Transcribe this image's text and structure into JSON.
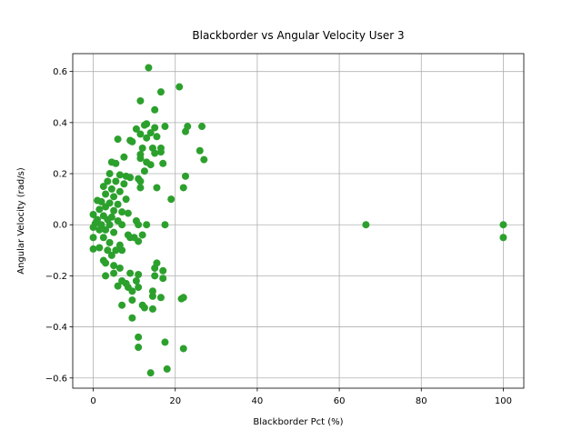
{
  "chart_data": {
    "type": "scatter",
    "title": "Blackborder vs Angular Velocity User 3",
    "xlabel": "Blackborder Pct (%)",
    "ylabel": "Angular Velocity (rad/s)",
    "color": "#2ca02c",
    "grid": true,
    "xlim": [
      -5,
      105
    ],
    "ylim": [
      -0.64,
      0.67
    ],
    "xticks": [
      0,
      20,
      40,
      60,
      80,
      100
    ],
    "yticks": [
      {
        "value": -0.6,
        "label": "−0.6"
      },
      {
        "value": -0.4,
        "label": "−0.4"
      },
      {
        "value": -0.2,
        "label": "−0.2"
      },
      {
        "value": 0,
        "label": "0.0"
      },
      {
        "value": 0.2,
        "label": "0.2"
      },
      {
        "value": 0.4,
        "label": "0.4"
      },
      {
        "value": 0.6,
        "label": "0.6"
      }
    ],
    "x": [
      13.5,
      21,
      16.5,
      11.5,
      15,
      13,
      12.5,
      17.5,
      15,
      10.5,
      23,
      26.5,
      22.5,
      14,
      11.5,
      13,
      6,
      9,
      15.5,
      9.5,
      12,
      14.5,
      16.5,
      16.5,
      26,
      11.5,
      15,
      11.5,
      7.5,
      27,
      4.5,
      5.5,
      13,
      17,
      14,
      12.5,
      4,
      6.5,
      8,
      9,
      22.5,
      11,
      3.5,
      5.5,
      11.5,
      7.5,
      11.5,
      15.5,
      22,
      2.5,
      4.5,
      6.5,
      3,
      5,
      8,
      19,
      1,
      2,
      4,
      6,
      3,
      1.5,
      5,
      7,
      8.5,
      0,
      2.5,
      4.5,
      1,
      3.5,
      6,
      10.5,
      0.5,
      2,
      4,
      7,
      11,
      13,
      17.5,
      66.5,
      100,
      100,
      0,
      1.5,
      3,
      5,
      8.5,
      0,
      2.5,
      9,
      10,
      12,
      11,
      4,
      6.5,
      0,
      1.5,
      3.5,
      5.5,
      7,
      4.5,
      2.5,
      3,
      5,
      6.5,
      15.5,
      15,
      3,
      5,
      9,
      11,
      15,
      17,
      17,
      7,
      8,
      10.5,
      6,
      8.5,
      11,
      9.5,
      14.5,
      14.5,
      16.5,
      22,
      21.5,
      9.5,
      7,
      12,
      12.5,
      14.5,
      9.5,
      11,
      17.5,
      11,
      22,
      18,
      14
    ],
    "y": [
      0.615,
      0.54,
      0.52,
      0.485,
      0.45,
      0.395,
      0.39,
      0.385,
      0.38,
      0.375,
      0.385,
      0.385,
      0.365,
      0.36,
      0.355,
      0.34,
      0.335,
      0.33,
      0.345,
      0.325,
      0.3,
      0.3,
      0.3,
      0.285,
      0.29,
      0.275,
      0.28,
      0.26,
      0.265,
      0.255,
      0.245,
      0.24,
      0.245,
      0.24,
      0.235,
      0.21,
      0.2,
      0.195,
      0.19,
      0.185,
      0.19,
      0.18,
      0.17,
      0.17,
      0.17,
      0.16,
      0.145,
      0.145,
      0.145,
      0.15,
      0.14,
      0.13,
      0.12,
      0.11,
      0.1,
      0.1,
      0.095,
      0.09,
      0.085,
      0.08,
      0.07,
      0.06,
      0.055,
      0.05,
      0.045,
      0.04,
      0.035,
      0.03,
      0.02,
      0.02,
      0.015,
      0.015,
      0.005,
      0,
      0,
      0,
      0,
      0,
      0,
      0,
      0,
      -0.05,
      -0.01,
      -0.02,
      -0.02,
      -0.03,
      -0.04,
      -0.05,
      -0.05,
      -0.05,
      -0.05,
      -0.04,
      -0.065,
      -0.07,
      -0.08,
      -0.095,
      -0.09,
      -0.1,
      -0.1,
      -0.1,
      -0.12,
      -0.14,
      -0.15,
      -0.16,
      -0.17,
      -0.15,
      -0.17,
      -0.2,
      -0.19,
      -0.19,
      -0.195,
      -0.2,
      -0.18,
      -0.21,
      -0.22,
      -0.23,
      -0.22,
      -0.24,
      -0.245,
      -0.245,
      -0.26,
      -0.26,
      -0.28,
      -0.285,
      -0.285,
      -0.29,
      -0.295,
      -0.315,
      -0.315,
      -0.325,
      -0.33,
      -0.365,
      -0.44,
      -0.46,
      -0.48,
      -0.485,
      -0.565,
      -0.58
    ]
  }
}
